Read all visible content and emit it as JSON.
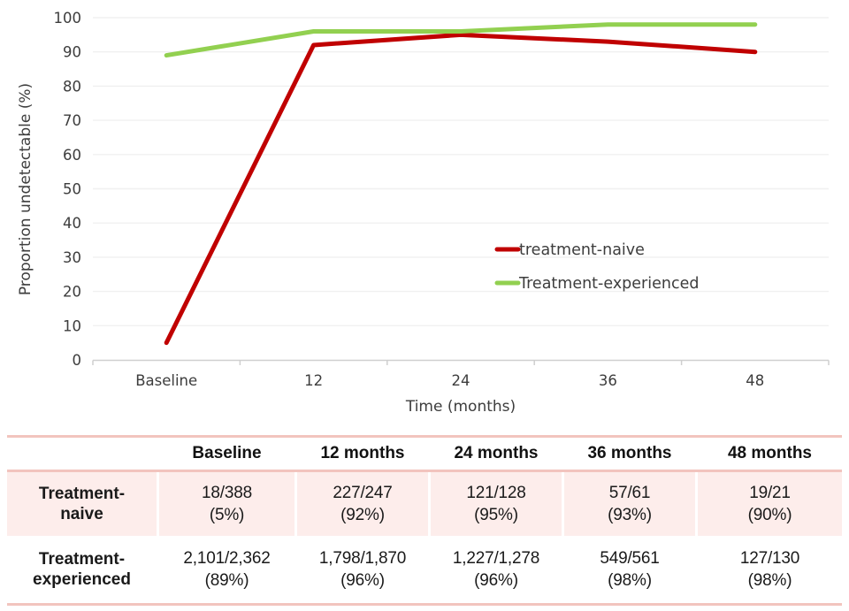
{
  "chart_data": {
    "type": "line",
    "categories": [
      "Baseline",
      "12",
      "24",
      "36",
      "48"
    ],
    "series": [
      {
        "name": "treatment-naive",
        "color": "#c00000",
        "values": [
          5,
          92,
          95,
          93,
          90
        ]
      },
      {
        "name": "Treatment-experienced",
        "color": "#92d050",
        "values": [
          89,
          96,
          96,
          98,
          98
        ]
      }
    ],
    "title": "",
    "xlabel": "Time (months)",
    "ylabel": "Proportion undetectable (%)",
    "ylim": [
      0,
      100
    ],
    "ytick_step": 10,
    "grid": true,
    "legend_position": "middle-right"
  },
  "table": {
    "headers": [
      "Baseline",
      "12 months",
      "24 months",
      "36 months",
      "48 months"
    ],
    "rows": [
      {
        "label_line1": "Treatment-",
        "label_line2": "naive",
        "cells": [
          {
            "top": "18/388",
            "bottom": "(5%)"
          },
          {
            "top": "227/247",
            "bottom": "(92%)"
          },
          {
            "top": "121/128",
            "bottom": "(95%)"
          },
          {
            "top": "57/61",
            "bottom": "(93%)"
          },
          {
            "top": "19/21",
            "bottom": "(90%)"
          }
        ]
      },
      {
        "label_line1": "Treatment-",
        "label_line2": "experienced",
        "cells": [
          {
            "top": "2,101/2,362",
            "bottom": "(89%)"
          },
          {
            "top": "1,798/1,870",
            "bottom": "(96%)"
          },
          {
            "top": "1,227/1,278",
            "bottom": "(96%)"
          },
          {
            "top": "549/561",
            "bottom": "(98%)"
          },
          {
            "top": "127/130",
            "bottom": "(98%)"
          }
        ]
      }
    ]
  },
  "colors": {
    "accent-red": "#c00000",
    "accent-green": "#92d050",
    "table-line": "#f2c4be",
    "table-row-bg": "#fdedeb",
    "table-text": "#1a1a1a",
    "chart-text": "#3d3d3d",
    "gridline": "#f0f0f0",
    "axis-line": "#cfcfcf"
  }
}
